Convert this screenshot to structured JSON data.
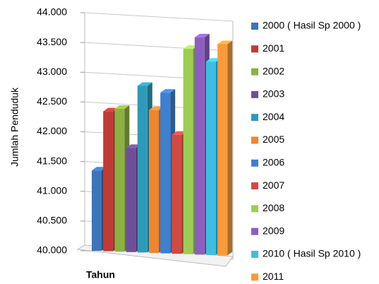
{
  "chart_data": {
    "type": "bar3d",
    "y_label": "Jumlah Penduduk",
    "x_label": "Tahun",
    "ylim": [
      40000,
      44000
    ],
    "yticks": [
      {
        "value": 40000,
        "label": "40.000"
      },
      {
        "value": 40500,
        "label": "40.500"
      },
      {
        "value": 41000,
        "label": "41.000"
      },
      {
        "value": 41500,
        "label": "41.500"
      },
      {
        "value": 42000,
        "label": "42.000"
      },
      {
        "value": 42500,
        "label": "42.500"
      },
      {
        "value": 43000,
        "label": "43.000"
      },
      {
        "value": 43500,
        "label": "43.500"
      },
      {
        "value": 44000,
        "label": "44.000"
      }
    ],
    "grid": true,
    "legend": "right",
    "series": [
      {
        "name": "2000 ( Hasil Sp 2000 )",
        "color": "#3f74b8",
        "values": [
          41350
        ]
      },
      {
        "name": "2001",
        "color": "#be3b36",
        "values": [
          42350
        ]
      },
      {
        "name": "2002",
        "color": "#8db043",
        "values": [
          42400
        ]
      },
      {
        "name": "2003",
        "color": "#6f4f9a",
        "values": [
          41750
        ]
      },
      {
        "name": "2004",
        "color": "#2f9ab8",
        "values": [
          42800
        ]
      },
      {
        "name": "2005",
        "color": "#ee8530",
        "values": [
          42400
        ]
      },
      {
        "name": "2006",
        "color": "#3f7fcf",
        "values": [
          42700
        ]
      },
      {
        "name": "2007",
        "color": "#cf4a44",
        "values": [
          42000
        ]
      },
      {
        "name": "2008",
        "color": "#9fcc55",
        "values": [
          43450
        ]
      },
      {
        "name": "2009",
        "color": "#8a5fbf",
        "values": [
          43650
        ]
      },
      {
        "name": "2010 ( Hasil Sp 2010 )",
        "color": "#3fbde0",
        "values": [
          43250
        ]
      },
      {
        "name": "2011",
        "color": "#f99a3c",
        "values": [
          43550
        ]
      }
    ]
  }
}
